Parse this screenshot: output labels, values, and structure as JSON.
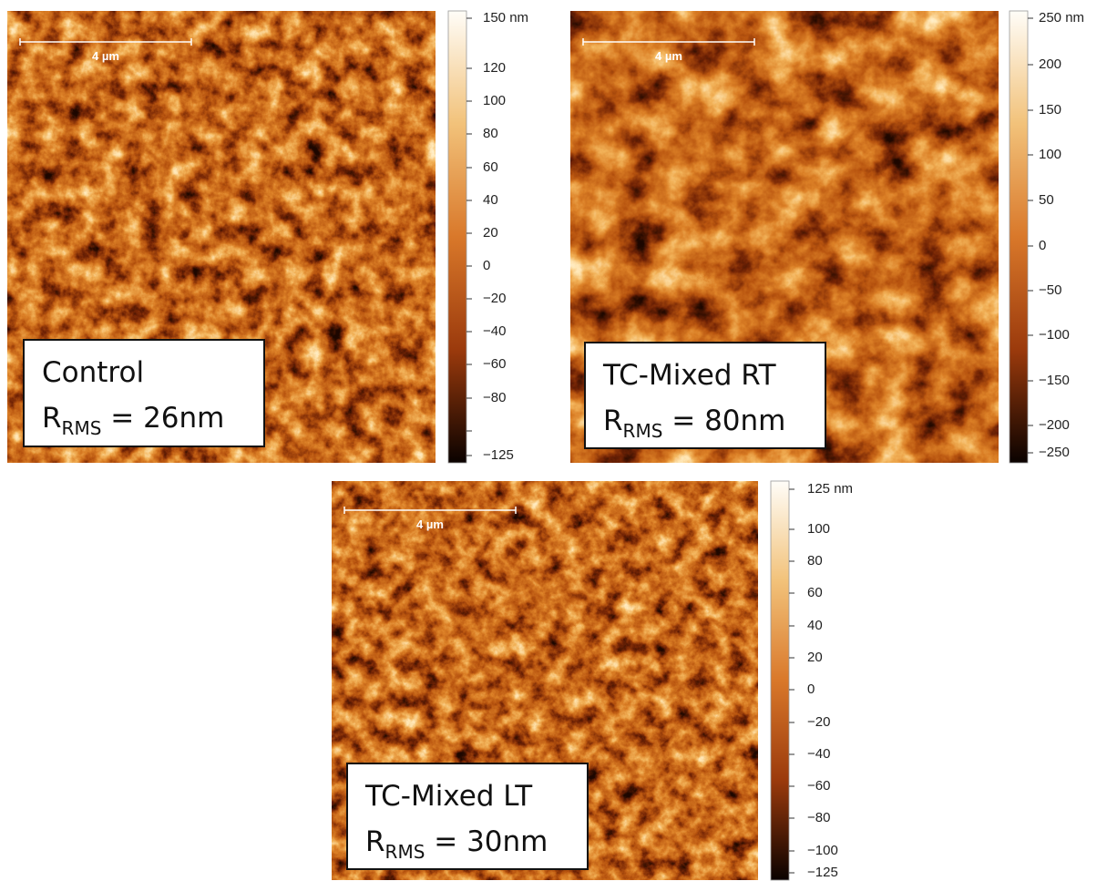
{
  "panels": [
    {
      "scale_bar": "4 µm",
      "label": "Control",
      "rms_symbol": "R",
      "rms_sub": "RMS",
      "rms_value": " = 26nm",
      "colorbar_ticks": [
        "150 nm",
        "120",
        "100",
        "80",
        "60",
        "40",
        "20",
        "0",
        "−20",
        "−40",
        "−60",
        "−80",
        "−125"
      ]
    },
    {
      "scale_bar": "4 µm",
      "label": "TC-Mixed RT",
      "rms_symbol": "R",
      "rms_sub": "RMS",
      "rms_value": " = 80nm",
      "colorbar_ticks": [
        "250 nm",
        "200",
        "150",
        "100",
        "50",
        "0",
        "−50",
        "−100",
        "−150",
        "−200",
        "−250"
      ]
    },
    {
      "scale_bar": "4 µm",
      "label": "TC-Mixed LT",
      "rms_symbol": "R",
      "rms_sub": "RMS",
      "rms_value": " = 30nm",
      "colorbar_ticks": [
        "125 nm",
        "100",
        "80",
        "60",
        "40",
        "20",
        "0",
        "−20",
        "−40",
        "−60",
        "−80",
        "−100",
        "−125"
      ]
    }
  ]
}
